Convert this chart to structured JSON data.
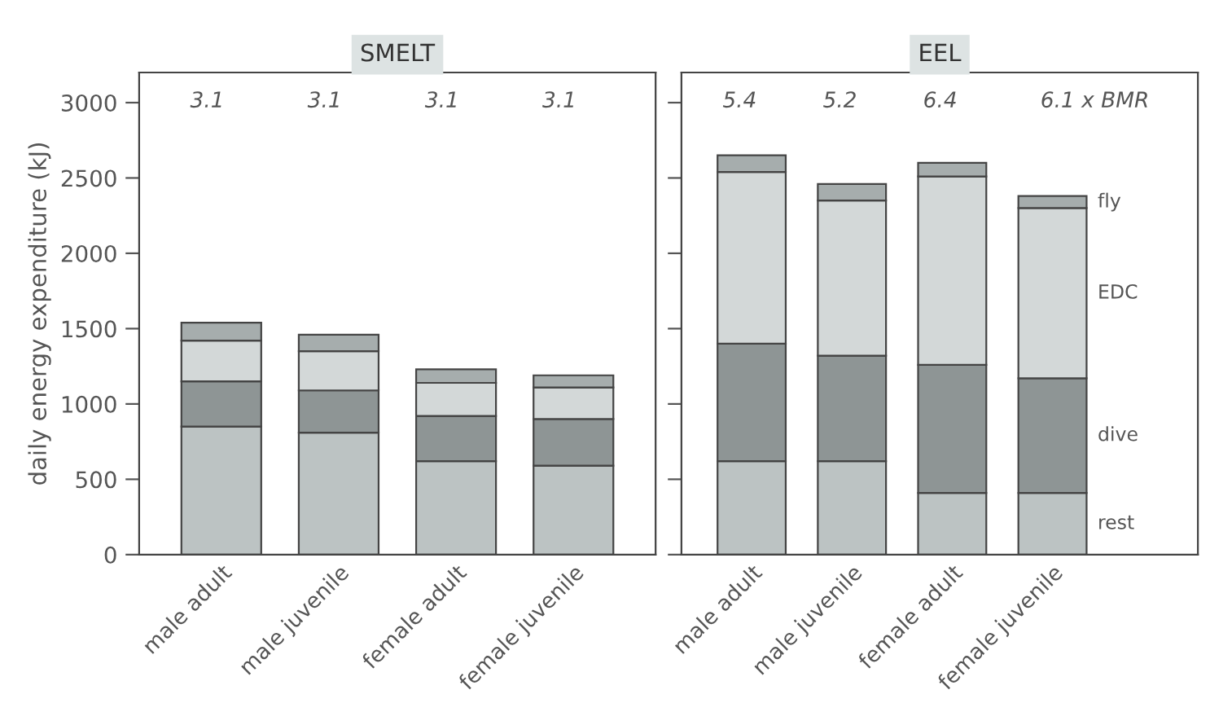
{
  "chart_data": [
    {
      "type": "bar",
      "title": "SMELT",
      "ylabel": "daily energy expenditure (kJ)",
      "categories": [
        "male adult",
        "male juvenile",
        "female adult",
        "female juvenile"
      ],
      "stacked": true,
      "ylim": [
        0,
        3200
      ],
      "yticks": [
        0,
        500,
        1000,
        1500,
        2000,
        2500,
        3000
      ],
      "grid": false,
      "series": [
        {
          "color": "#bcc3c3",
          "values": [
            850,
            810,
            620,
            590
          ]
        },
        {
          "color": "#8e9595",
          "values": [
            300,
            280,
            300,
            310
          ]
        },
        {
          "color": "#d3d8d8",
          "values": [
            270,
            260,
            220,
            210
          ]
        },
        {
          "color": "#a6adad",
          "values": [
            120,
            110,
            90,
            80
          ]
        }
      ],
      "annotations": [
        "3.1",
        "3.1",
        "3.1",
        "3.1"
      ]
    },
    {
      "type": "bar",
      "title": "EEL",
      "categories": [
        "male adult",
        "male juvenile",
        "female adult",
        "female juvenile"
      ],
      "stacked": true,
      "ylim": [
        0,
        3200
      ],
      "yticks": [
        0,
        500,
        1000,
        1500,
        2000,
        2500,
        3000
      ],
      "tick_labels": "x",
      "grid": false,
      "series": [
        {
          "name": "rest",
          "color": "#bcc3c3",
          "values": [
            620,
            620,
            410,
            410
          ]
        },
        {
          "name": "dive",
          "color": "#8e9595",
          "values": [
            780,
            700,
            850,
            760
          ]
        },
        {
          "name": "EDC",
          "color": "#d3d8d8",
          "values": [
            1140,
            1030,
            1250,
            1130
          ]
        },
        {
          "name": "fly",
          "color": "#a6adad",
          "values": [
            110,
            110,
            90,
            80
          ]
        }
      ],
      "annotations": [
        "5.4",
        "5.2",
        "6.4",
        "6.1 x BMR"
      ]
    }
  ]
}
